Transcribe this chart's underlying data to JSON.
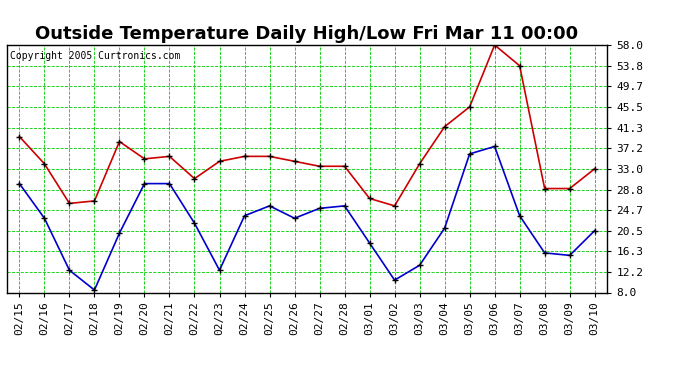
{
  "title": "Outside Temperature Daily High/Low Fri Mar 11 00:00",
  "copyright": "Copyright 2005 Curtronics.com",
  "x_labels": [
    "02/15",
    "02/16",
    "02/17",
    "02/18",
    "02/19",
    "02/20",
    "02/21",
    "02/22",
    "02/23",
    "02/24",
    "02/25",
    "02/26",
    "02/27",
    "02/28",
    "03/01",
    "03/02",
    "03/03",
    "03/04",
    "03/05",
    "03/06",
    "03/07",
    "03/08",
    "03/09",
    "03/10"
  ],
  "high_temps": [
    39.5,
    34.0,
    26.0,
    26.5,
    38.5,
    35.0,
    35.5,
    31.0,
    34.5,
    35.5,
    35.5,
    34.5,
    33.5,
    33.5,
    27.0,
    25.5,
    34.0,
    41.5,
    45.5,
    58.0,
    53.8,
    29.0,
    29.0,
    33.0
  ],
  "low_temps": [
    30.0,
    23.0,
    12.5,
    8.5,
    20.0,
    30.0,
    30.0,
    22.0,
    12.5,
    23.5,
    25.5,
    23.0,
    25.0,
    25.5,
    18.0,
    10.5,
    13.5,
    21.0,
    36.0,
    37.5,
    23.5,
    16.0,
    15.5,
    20.5
  ],
  "high_color": "#cc0000",
  "low_color": "#0000cc",
  "marker_color": "#000000",
  "bg_color": "#ffffff",
  "plot_bg_color": "#ffffff",
  "grid_color": "#00cc00",
  "y_ticks": [
    8.0,
    12.2,
    16.3,
    20.5,
    24.7,
    28.8,
    33.0,
    37.2,
    41.3,
    45.5,
    49.7,
    53.8,
    58.0
  ],
  "ylim": [
    8.0,
    58.0
  ],
  "title_fontsize": 13,
  "tick_fontsize": 8,
  "copyright_fontsize": 7
}
